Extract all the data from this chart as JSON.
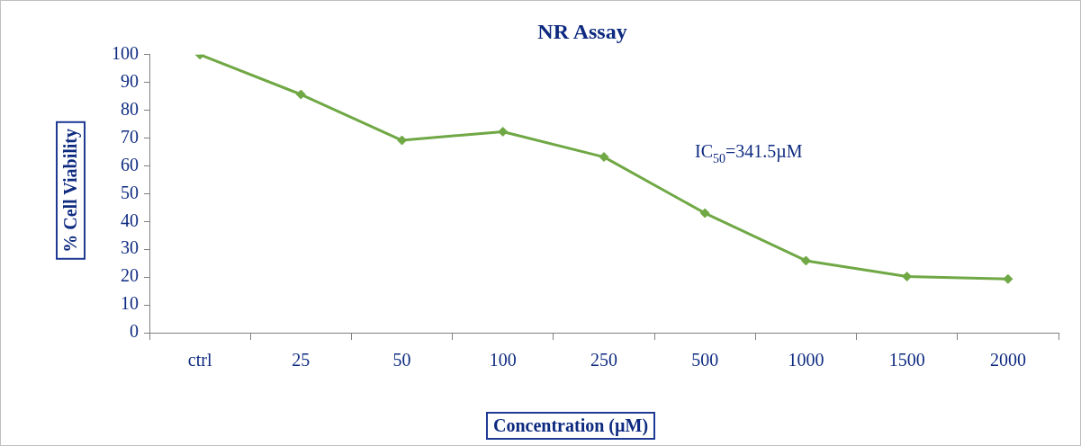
{
  "chart_data": {
    "type": "line",
    "title": "NR Assay",
    "xlabel": "Concentration  (µM)",
    "ylabel": "% Cell Viability",
    "categories": [
      "ctrl",
      "25",
      "50",
      "100",
      "250",
      "500",
      "1000",
      "1500",
      "2000"
    ],
    "series": [
      {
        "color": "#70a845",
        "values": [
          100,
          85.7,
          69.2,
          72.3,
          63.2,
          43,
          25.9,
          20.2,
          19.3
        ]
      }
    ],
    "ylim": [
      0,
      100
    ],
    "yticks": [
      0,
      10,
      20,
      30,
      40,
      50,
      60,
      70,
      80,
      90,
      100
    ],
    "grid": false,
    "legend": false,
    "marker": "diamond",
    "line_style": "solid",
    "annotations": [
      "IC$_{50}$=341.5µM"
    ]
  }
}
